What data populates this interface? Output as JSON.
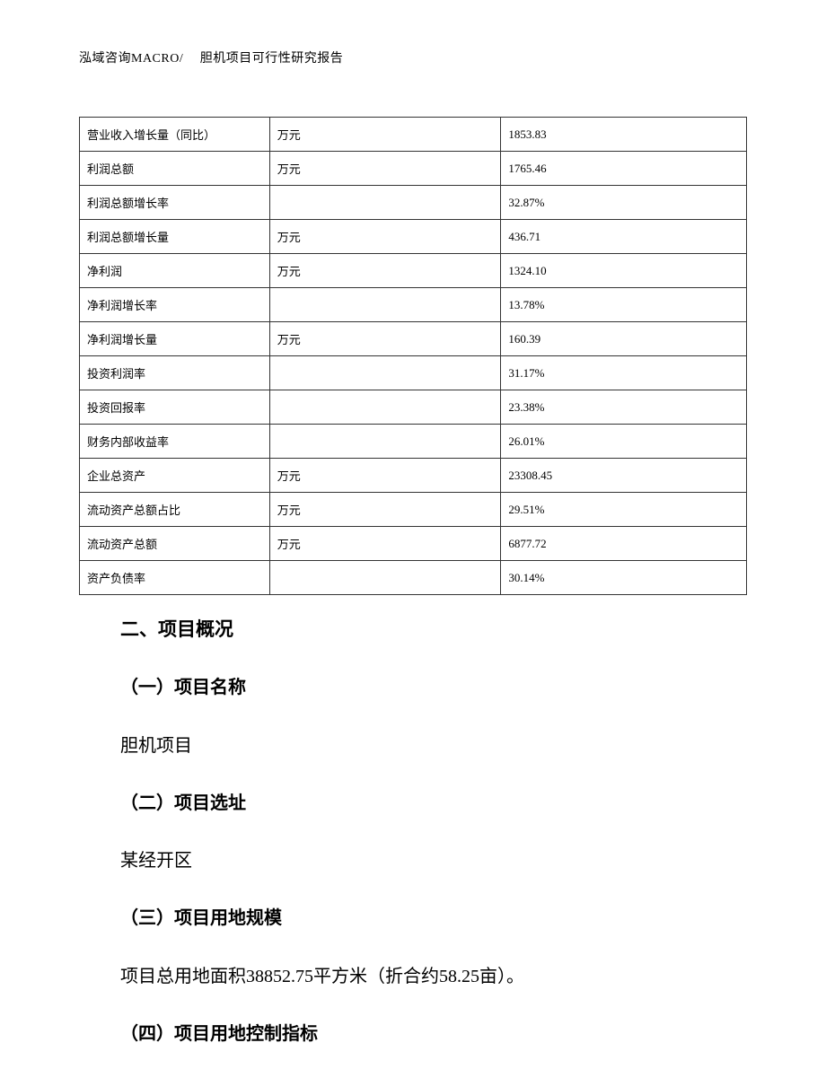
{
  "header": {
    "text": "泓域咨询MACRO/　 胆机项目可行性研究报告"
  },
  "table": {
    "col_widths": [
      "212px",
      "258px",
      "274px"
    ],
    "border_color": "#333333",
    "font_size": 13,
    "rows": [
      {
        "label": "营业收入增长量（同比）",
        "unit": "万元",
        "value": "1853.83"
      },
      {
        "label": "利润总额",
        "unit": "万元",
        "value": "1765.46"
      },
      {
        "label": "利润总额增长率",
        "unit": "",
        "value": "32.87%"
      },
      {
        "label": "利润总额增长量",
        "unit": "万元",
        "value": "436.71"
      },
      {
        "label": "净利润",
        "unit": "万元",
        "value": "1324.10"
      },
      {
        "label": "净利润增长率",
        "unit": "",
        "value": "13.78%"
      },
      {
        "label": "净利润增长量",
        "unit": "万元",
        "value": "160.39"
      },
      {
        "label": "投资利润率",
        "unit": "",
        "value": "31.17%"
      },
      {
        "label": "投资回报率",
        "unit": "",
        "value": "23.38%"
      },
      {
        "label": "财务内部收益率",
        "unit": "",
        "value": "26.01%"
      },
      {
        "label": "企业总资产",
        "unit": "万元",
        "value": "23308.45"
      },
      {
        "label": "流动资产总额占比",
        "unit": "万元",
        "value": "29.51%"
      },
      {
        "label": "流动资产总额",
        "unit": "万元",
        "value": "6877.72"
      },
      {
        "label": "资产负债率",
        "unit": "",
        "value": "30.14%"
      }
    ]
  },
  "section": {
    "title": "二、项目概况",
    "items": [
      {
        "heading": "（一）项目名称",
        "body": "胆机项目"
      },
      {
        "heading": "（二）项目选址",
        "body": "某经开区"
      },
      {
        "heading": "（三）项目用地规模",
        "body": "项目总用地面积38852.75平方米（折合约58.25亩）。"
      },
      {
        "heading": "（四）项目用地控制指标",
        "body": ""
      }
    ]
  },
  "style": {
    "page_bg": "#ffffff",
    "text_color": "#000000",
    "body_font_size": 20,
    "heading_font_family": "SimHei",
    "body_font_family": "SimSun"
  }
}
